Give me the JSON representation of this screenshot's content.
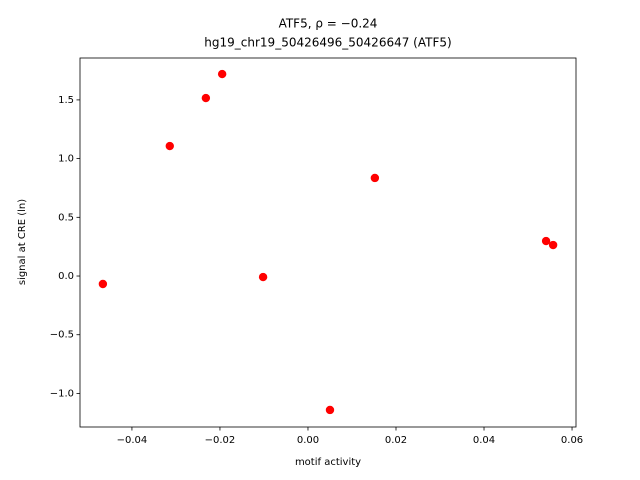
{
  "chart_data": {
    "type": "scatter",
    "title": "ATF5, ρ = −0.24",
    "subtitle": "hg19_chr19_50426496_50426647 (ATF5)",
    "x_label": "motif activity",
    "y_label": "signal at CRE (ln)",
    "color": "#ff0000",
    "x": [
      -0.0466,
      -0.0314,
      -0.0232,
      -0.0195,
      -0.0102,
      0.005,
      0.0152,
      0.0541,
      0.0557
    ],
    "values": [
      -0.068,
      1.107,
      1.516,
      1.72,
      -0.009,
      -1.141,
      0.835,
      0.298,
      0.264
    ],
    "xlim": [
      -0.0518,
      0.0609
    ],
    "ylim": [
      -1.286,
      1.857
    ],
    "xticks": [
      {
        "value": -0.04,
        "label": "−0.04"
      },
      {
        "value": -0.02,
        "label": "−0.02"
      },
      {
        "value": 0,
        "label": "0.00"
      },
      {
        "value": 0.02,
        "label": "0.02"
      },
      {
        "value": 0.04,
        "label": "0.04"
      },
      {
        "value": 0.06,
        "label": "0.06"
      }
    ],
    "yticks": [
      {
        "value": -1,
        "label": "−1.0"
      },
      {
        "value": -0.5,
        "label": "−0.5"
      },
      {
        "value": 0,
        "label": "0.0"
      },
      0.5,
      {
        "value": 1,
        "label": "1.0"
      },
      1.5
    ],
    "grid": false
  }
}
